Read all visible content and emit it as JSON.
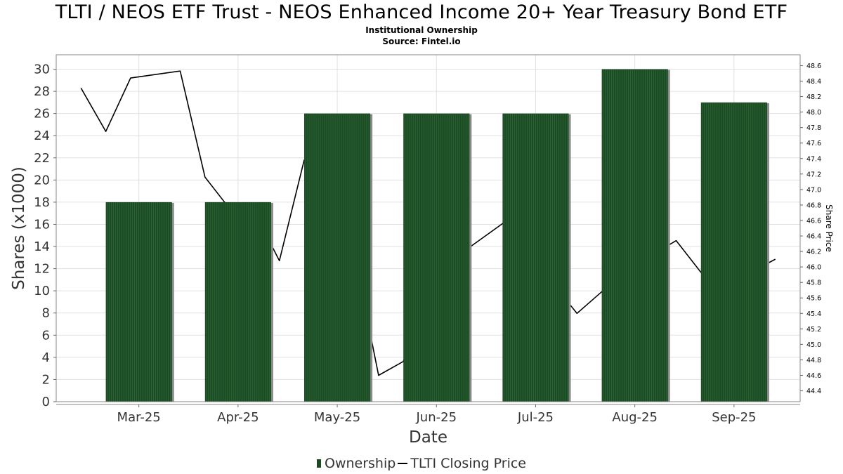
{
  "title": "TLTI / NEOS ETF Trust - NEOS Enhanced Income 20+ Year Treasury Bond ETF",
  "subtitle_1": "Institutional Ownership",
  "subtitle_2": "Source: Fintel.io",
  "colors": {
    "bar": "#1b4a24",
    "bar_stripe": "#2e6b36",
    "bar_shadow": "#8a8a8a",
    "line": "#000000",
    "grid": "#e0e0e0",
    "frame": "#888888"
  },
  "legend": {
    "ownership": "Ownership",
    "price": "TLTI Closing Price"
  },
  "chart_data": {
    "type": "bar",
    "xlabel": "Date",
    "ylabel": "Shares (x1000)",
    "y2label": "Share Price",
    "ylim": [
      0,
      31.3
    ],
    "y_ticks": [
      0,
      2,
      4,
      6,
      8,
      10,
      12,
      14,
      16,
      18,
      20,
      22,
      24,
      26,
      28,
      30
    ],
    "y2lim": [
      44.26,
      48.74
    ],
    "y2_ticks": [
      "44.4",
      "44.6",
      "44.8",
      "45.0",
      "45.2",
      "45.4",
      "45.6",
      "45.8",
      "46.0",
      "46.2",
      "46.4",
      "46.6",
      "46.8",
      "47.0",
      "47.2",
      "47.4",
      "47.6",
      "47.8",
      "48.0",
      "48.2",
      "48.4",
      "48.6"
    ],
    "x_ticks": [
      "Mar-25",
      "Apr-25",
      "May-25",
      "Jun-25",
      "Jul-25",
      "Aug-25",
      "Sep-25"
    ],
    "grid": true,
    "legend_position": "bottom-center",
    "series": [
      {
        "name": "Ownership",
        "type": "bar",
        "values": [
          18,
          18,
          26,
          26,
          26,
          30,
          27
        ]
      },
      {
        "name": "TLTI Closing Price",
        "type": "line",
        "axis": "right",
        "x": [
          0.5,
          1.0,
          1.5,
          2.5,
          3.0,
          3.5,
          4.0,
          4.5,
          5.0,
          5.5,
          6.0,
          6.5,
          7.0,
          7.5,
          8.0,
          8.5,
          9.0,
          9.5,
          10.0,
          10.5,
          11.0,
          11.5,
          12.0,
          12.5,
          13.0,
          13.5,
          14.0,
          14.5
        ],
        "values": [
          48.31,
          47.75,
          48.44,
          48.53,
          47.16,
          46.75,
          46.71,
          46.08,
          47.38,
          46.9,
          46.2,
          44.6,
          44.78,
          45.7,
          46.1,
          46.33,
          46.56,
          46.7,
          45.8,
          45.4,
          45.68,
          45.85,
          46.15,
          46.34,
          45.93,
          45.8,
          45.93,
          46.1
        ]
      }
    ]
  }
}
